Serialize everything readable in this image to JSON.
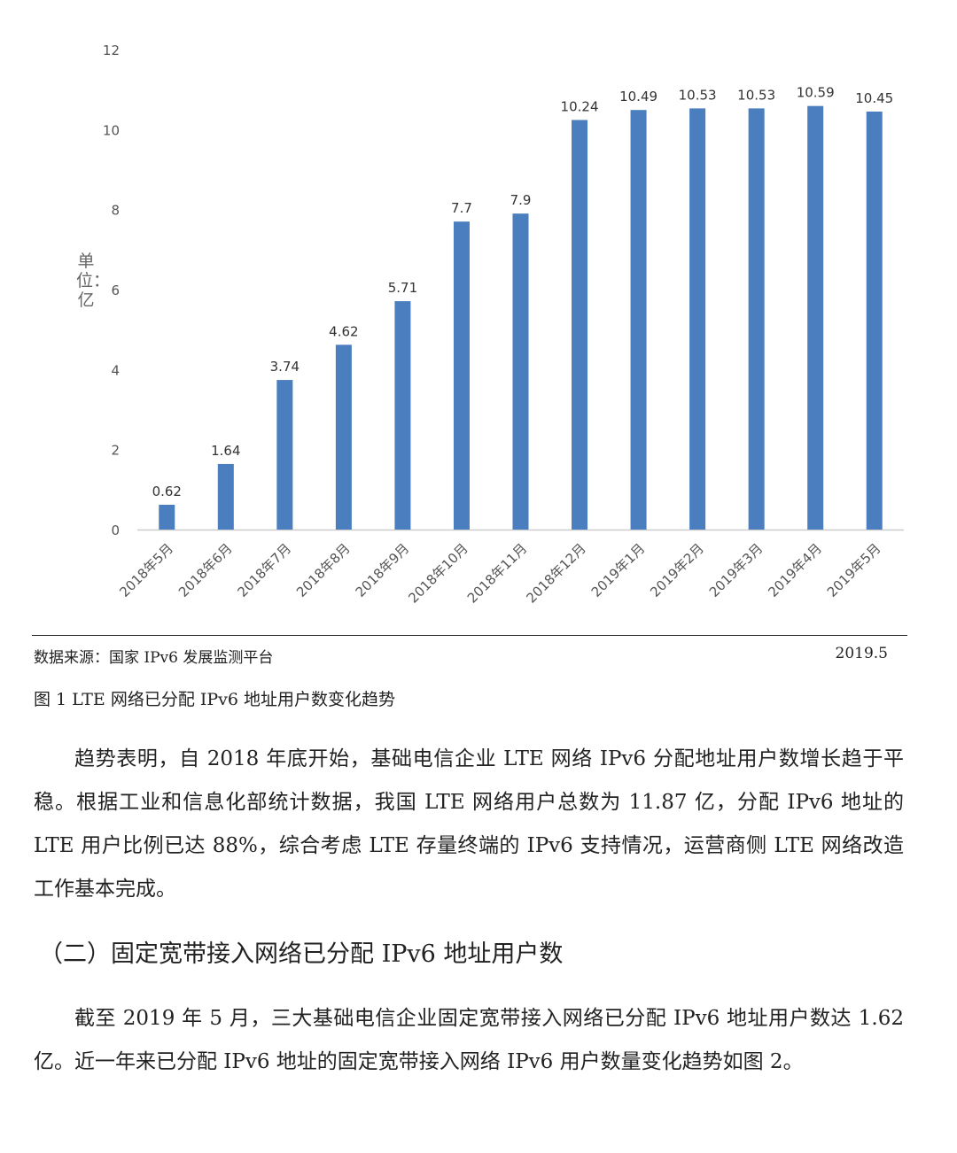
{
  "chart_data": {
    "type": "bar",
    "title": "图 1 LTE 网络已分配 IPv6 地址用户数变化趋势",
    "ylabel": "单位：亿",
    "xlabel": "",
    "ylim": [
      0,
      12
    ],
    "yticks": [
      0,
      2,
      4,
      6,
      8,
      10,
      12
    ],
    "grid": false,
    "color": "#4a7ebf",
    "categories": [
      "2018年5月",
      "2018年6月",
      "2018年7月",
      "2018年8月",
      "2018年9月",
      "2018年10月",
      "2018年11月",
      "2018年12月",
      "2019年1月",
      "2019年2月",
      "2019年3月",
      "2019年4月",
      "2019年5月"
    ],
    "values": [
      0.62,
      1.64,
      3.74,
      4.62,
      5.71,
      7.7,
      7.9,
      10.24,
      10.49,
      10.53,
      10.53,
      10.59,
      10.45
    ],
    "value_labels": [
      "0.62",
      "1.64",
      "3.74",
      "4.62",
      "5.71",
      "7.7",
      "7.9",
      "10.24",
      "10.49",
      "10.53",
      "10.53",
      "10.59",
      "10.45"
    ]
  },
  "figure": {
    "source": "数据来源：国家 IPv6 发展监测平台",
    "date": "2019.5",
    "caption": "图 1 LTE 网络已分配 IPv6 地址用户数变化趋势"
  },
  "body": {
    "para1": "趋势表明，自 2018 年底开始，基础电信企业 LTE 网络 IPv6 分配地址用户数增长趋于平稳。根据工业和信息化部统计数据，我国 LTE 网络用户总数为 11.87 亿，分配 IPv6 地址的 LTE 用户比例已达 88%，综合考虑 LTE 存量终端的 IPv6 支持情况，运营商侧 LTE 网络改造工作基本完成。",
    "heading": "（二）固定宽带接入网络已分配 IPv6 地址用户数",
    "para2": "截至 2019 年 5 月，三大基础电信企业固定宽带接入网络已分配 IPv6 地址用户数达 1.62 亿。近一年来已分配 IPv6 地址的固定宽带接入网络 IPv6 用户数量变化趋势如图 2。"
  }
}
